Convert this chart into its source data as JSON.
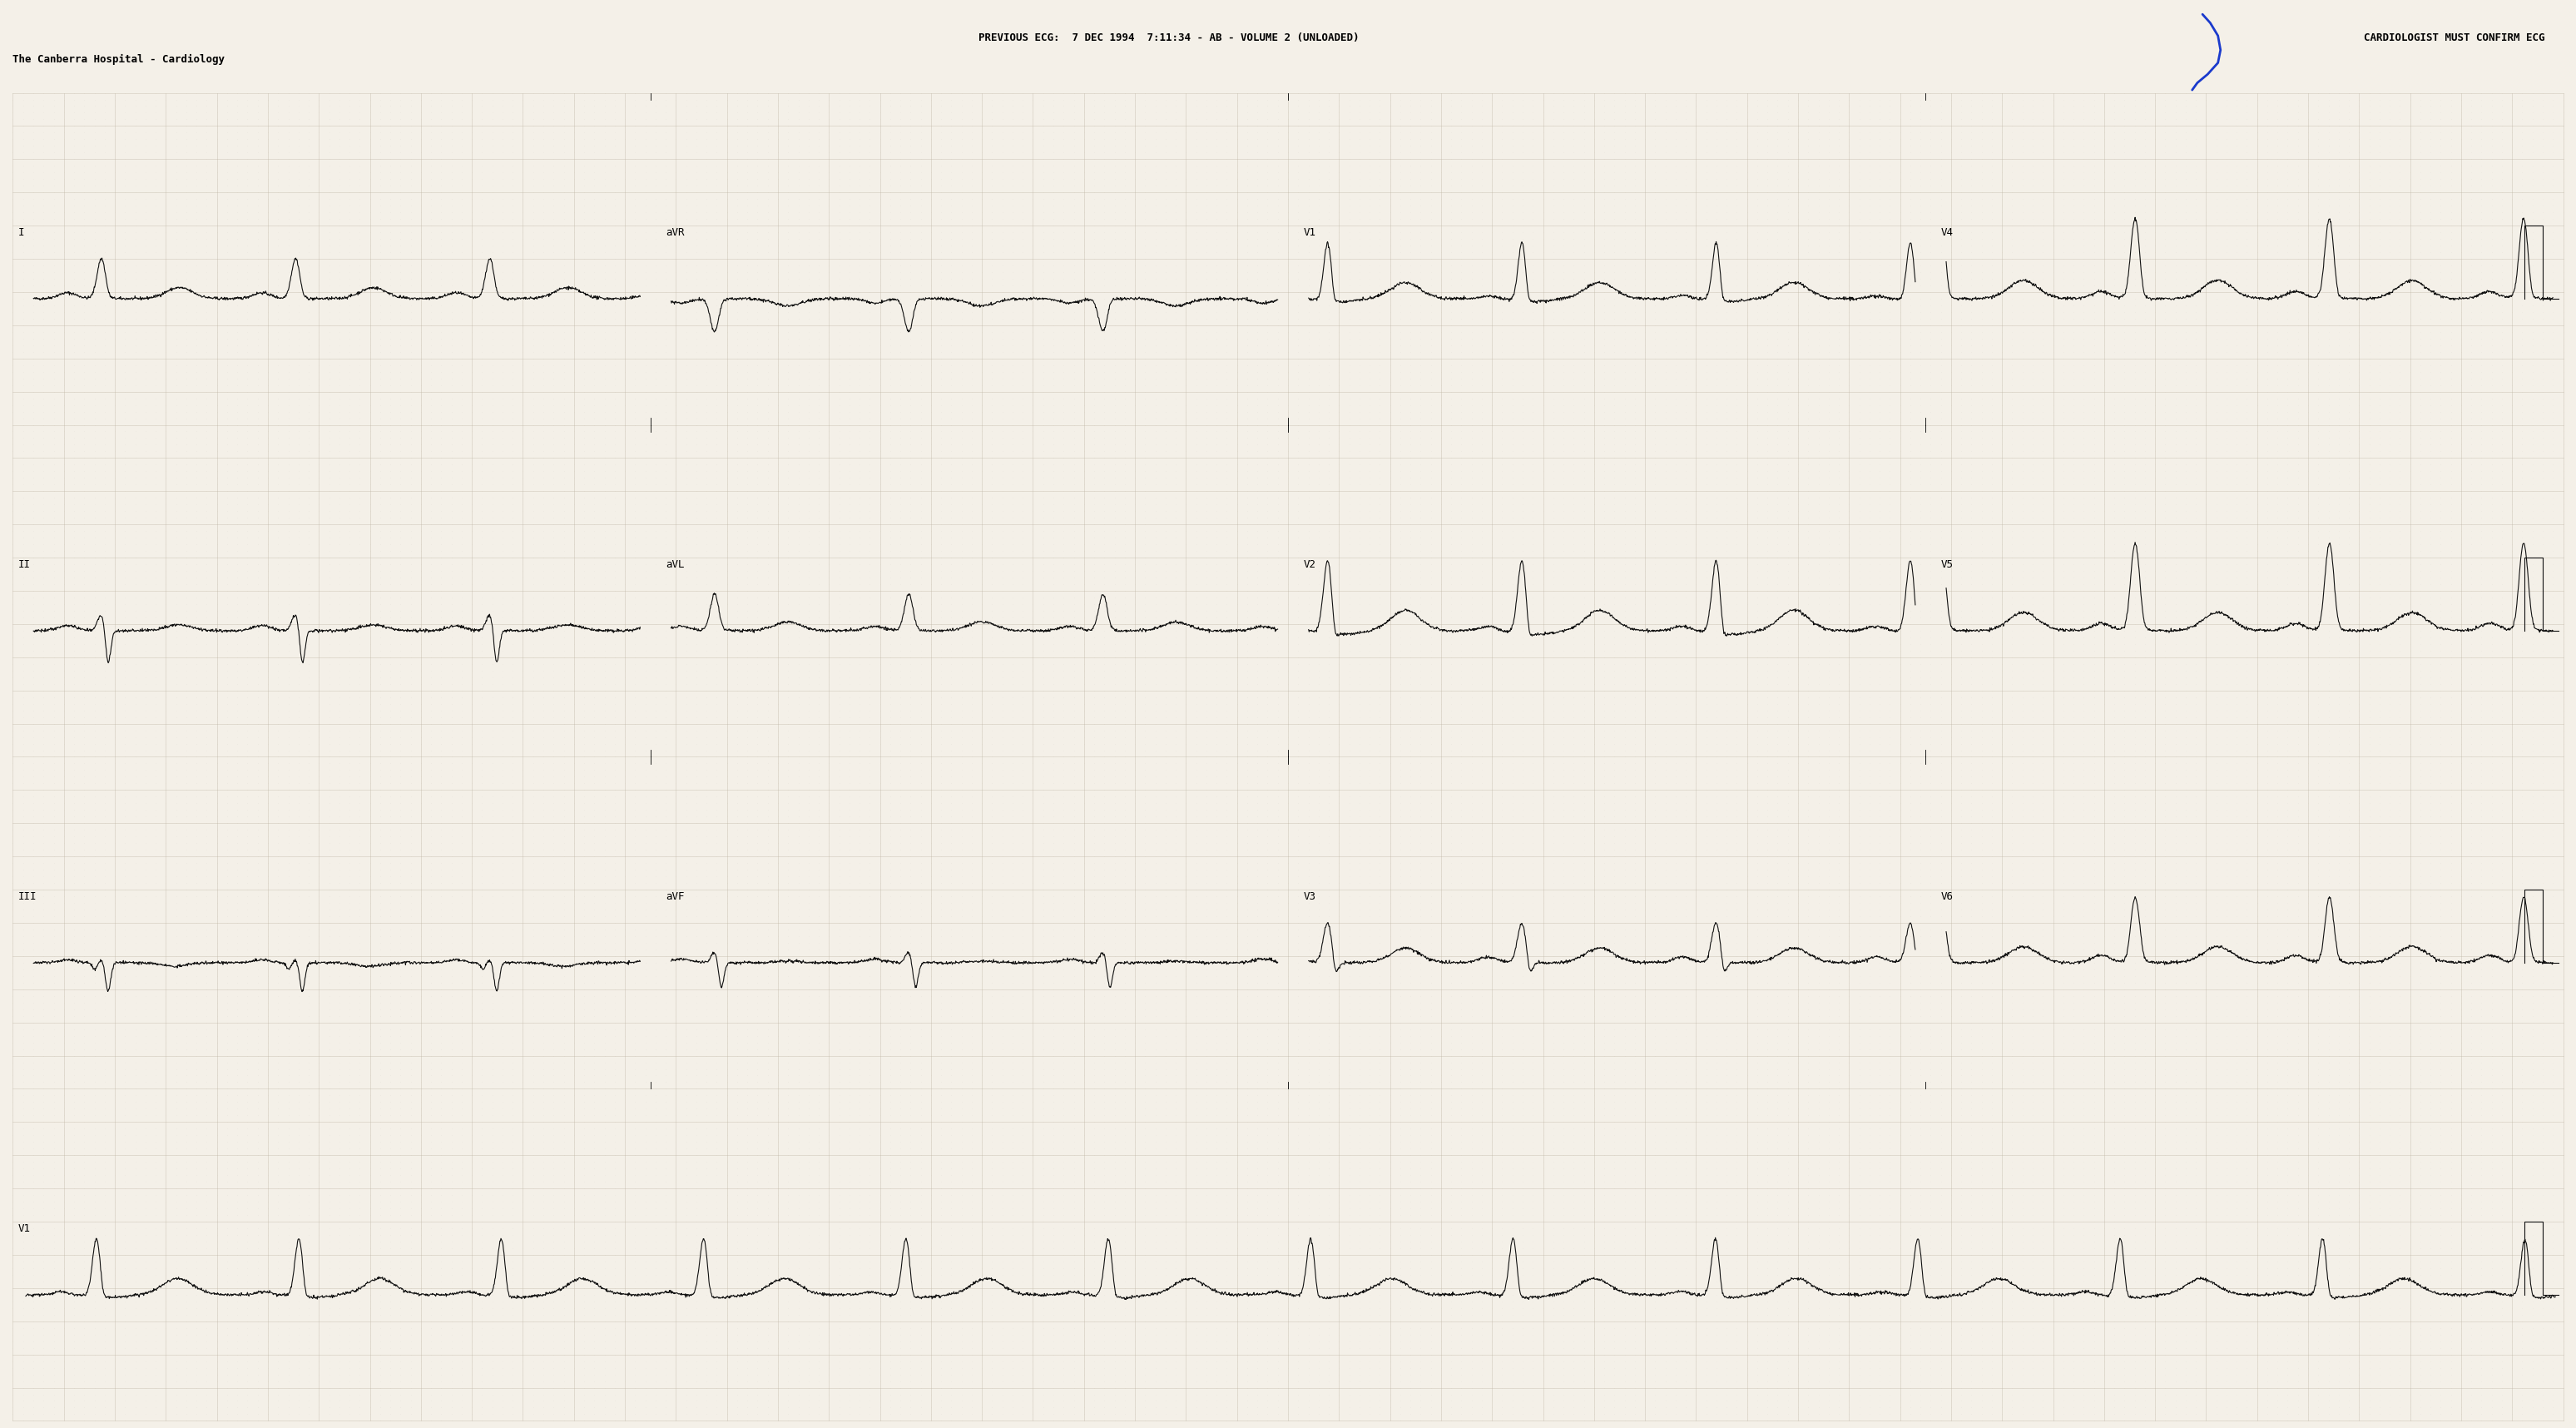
{
  "title_center": "PREVIOUS ECG:  7 DEC 1994  7:11:34 - AB - VOLUME 2 (UNLOADED)",
  "title_left": "The Canberra Hospital - Cardiology",
  "title_right": "CARDIOLOGIST MUST CONFIRM ECG",
  "bg_color": "#f4f0e8",
  "grid_dot_color": "#b8b0a0",
  "grid_major_color": "#c8c0b0",
  "ecg_color": "#111111",
  "fig_width": 30.96,
  "fig_height": 17.16,
  "rr_interval": 0.8,
  "fs": 500,
  "n_rows": 4,
  "n_cols": 4,
  "seg_duration": 2.5,
  "full_duration": 10.0,
  "row_layout": [
    [
      [
        "I",
        0
      ],
      [
        "aVR",
        1
      ],
      [
        "V1",
        2
      ],
      [
        "V4",
        3
      ]
    ],
    [
      [
        "II",
        0
      ],
      [
        "aVL",
        1
      ],
      [
        "V2",
        2
      ],
      [
        "V5",
        3
      ]
    ],
    [
      [
        "III",
        0
      ],
      [
        "aVF",
        1
      ],
      [
        "V3",
        2
      ],
      [
        "V6",
        3
      ]
    ],
    [
      [
        "V1",
        0
      ]
    ]
  ],
  "lm": 0.005,
  "rm": 0.005,
  "tm": 0.065,
  "bm": 0.005
}
